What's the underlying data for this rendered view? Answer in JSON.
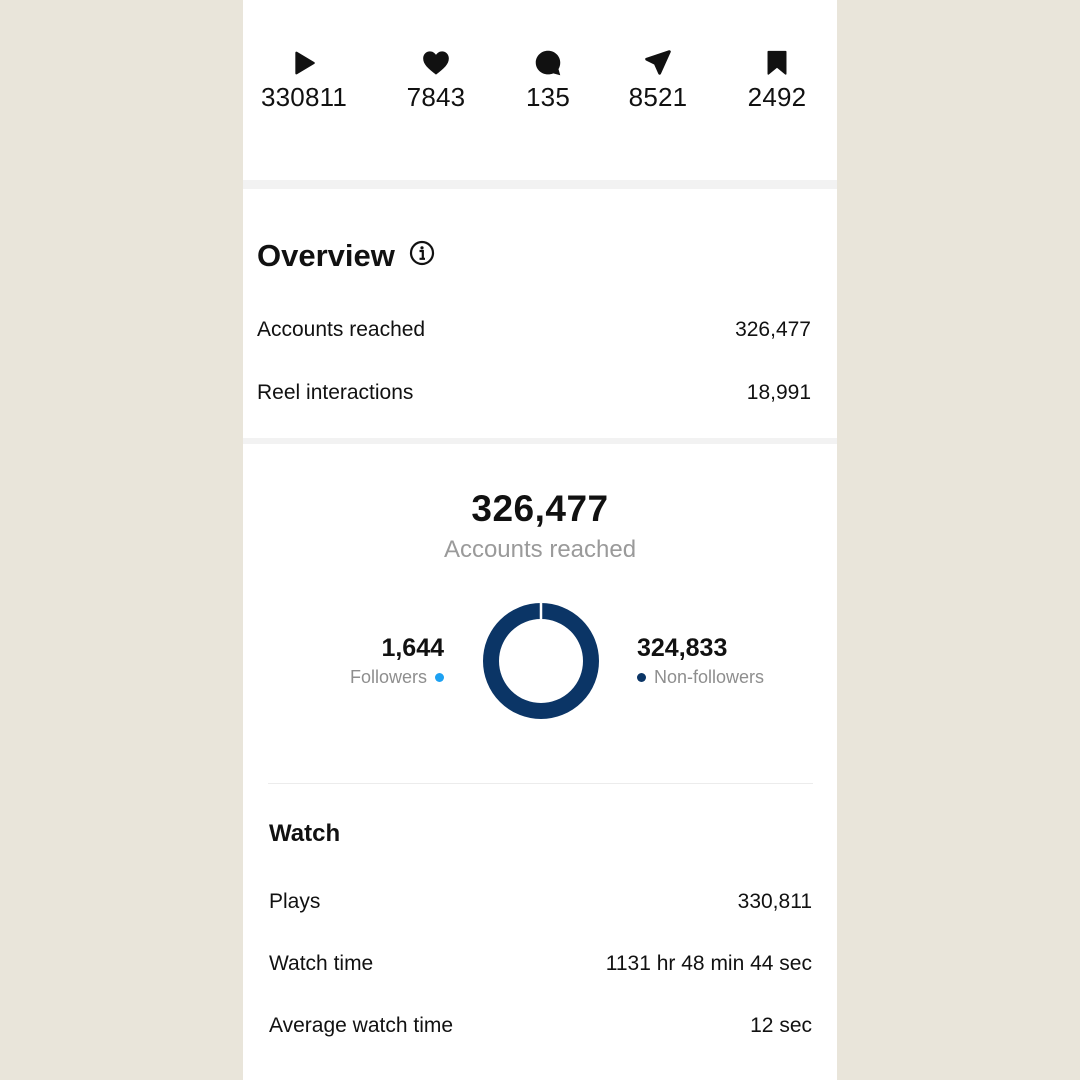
{
  "stats": {
    "plays": "330811",
    "likes": "7843",
    "comments": "135",
    "shares": "8521",
    "saves": "2492"
  },
  "overview": {
    "title": "Overview",
    "rows": [
      {
        "label": "Accounts reached",
        "value": "326,477"
      },
      {
        "label": "Reel interactions",
        "value": "18,991"
      }
    ]
  },
  "reach": {
    "total": "326,477",
    "total_label": "Accounts reached",
    "followers": {
      "value": "1,644",
      "label": "Followers",
      "color": "#1da1f2"
    },
    "non_followers": {
      "value": "324,833",
      "label": "Non-followers",
      "color": "#0b3566"
    }
  },
  "watch": {
    "title": "Watch",
    "rows": [
      {
        "label": "Plays",
        "value": "330,811"
      },
      {
        "label": "Watch time",
        "value": "1131 hr 48 min 44 sec"
      },
      {
        "label": "Average watch time",
        "value": "12 sec"
      }
    ]
  },
  "icons": {
    "plays": "play-icon",
    "likes": "heart-icon",
    "comments": "comment-icon",
    "shares": "send-icon",
    "saves": "bookmark-icon",
    "overview_info": "info-icon"
  }
}
